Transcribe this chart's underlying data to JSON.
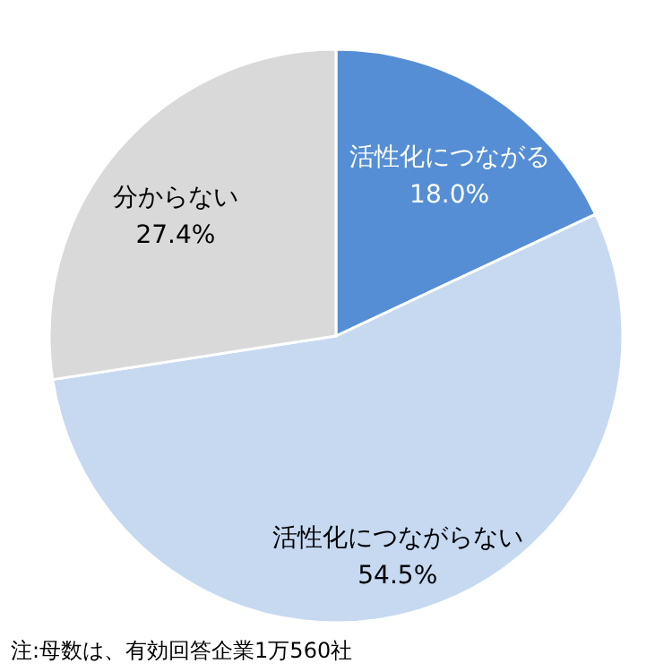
{
  "chart_data": {
    "type": "pie",
    "categories": [
      "活性化につながる",
      "活性化につながらない",
      "分からない"
    ],
    "values": [
      18.0,
      54.5,
      27.4
    ],
    "colors": [
      "#558ed5",
      "#c6d9f1",
      "#d9d9d9"
    ],
    "value_labels": [
      "18.0%",
      "54.5%",
      "27.4%"
    ],
    "annotations": [
      "注:母数は、有効回答企業1万560社"
    ]
  }
}
